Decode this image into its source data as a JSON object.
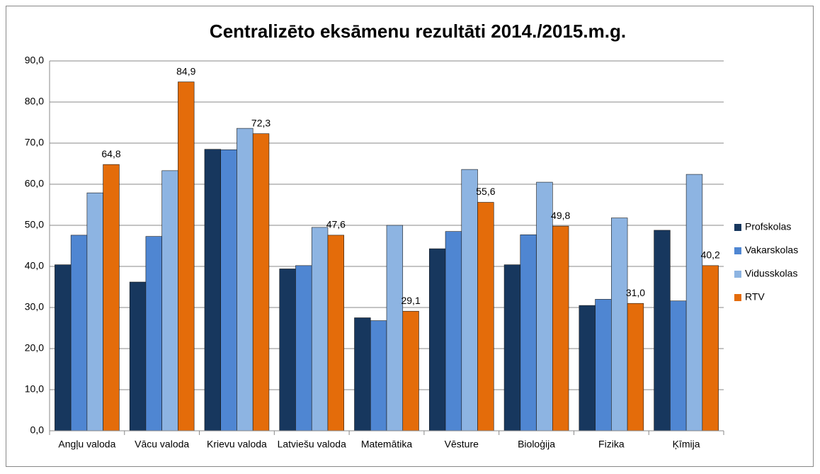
{
  "chart_data": {
    "type": "bar",
    "title": "Centralizēto eksāmenu rezultāti 2014./2015.m.g.",
    "categories": [
      "Angļu valoda",
      "Vācu valoda",
      "Krievu valoda",
      "Latviešu valoda",
      "Matemātika",
      "Vēsture",
      "Bioloģija",
      "Fizika",
      "Ķīmija"
    ],
    "series": [
      {
        "name": "Profskolas",
        "color": "#17375e",
        "values": [
          40.4,
          36.2,
          68.5,
          39.4,
          27.5,
          44.3,
          40.4,
          30.5,
          48.8
        ]
      },
      {
        "name": "Vakarskolas",
        "color": "#4f86d2",
        "values": [
          47.6,
          47.3,
          68.4,
          40.2,
          26.8,
          48.5,
          47.7,
          32.0,
          31.6
        ]
      },
      {
        "name": "Vidusskolas",
        "color": "#8db4e2",
        "values": [
          57.9,
          63.3,
          73.6,
          49.5,
          50.0,
          63.6,
          60.5,
          51.8,
          62.4
        ]
      },
      {
        "name": "RTV",
        "color": "#e46c0a",
        "values": [
          64.8,
          84.9,
          72.3,
          47.6,
          29.1,
          55.6,
          49.8,
          31.0,
          40.2
        ],
        "value_labels": [
          "64,8",
          "84,9",
          "72,3",
          "47,6",
          "29,1",
          "55,6",
          "49,8",
          "31,0",
          "40,2"
        ]
      }
    ],
    "ylim": [
      0,
      90
    ],
    "yticks": [
      {
        "value": 0,
        "label": "0,0"
      },
      {
        "value": 10,
        "label": "10,0"
      },
      {
        "value": 20,
        "label": "20,0"
      },
      {
        "value": 30,
        "label": "30,0"
      },
      {
        "value": 40,
        "label": "40,0"
      },
      {
        "value": 50,
        "label": "50,0"
      },
      {
        "value": 60,
        "label": "60,0"
      },
      {
        "value": 70,
        "label": "70,0"
      },
      {
        "value": 80,
        "label": "80,0"
      },
      {
        "value": 90,
        "label": "90,0"
      }
    ],
    "grid": true,
    "legend": "right"
  }
}
